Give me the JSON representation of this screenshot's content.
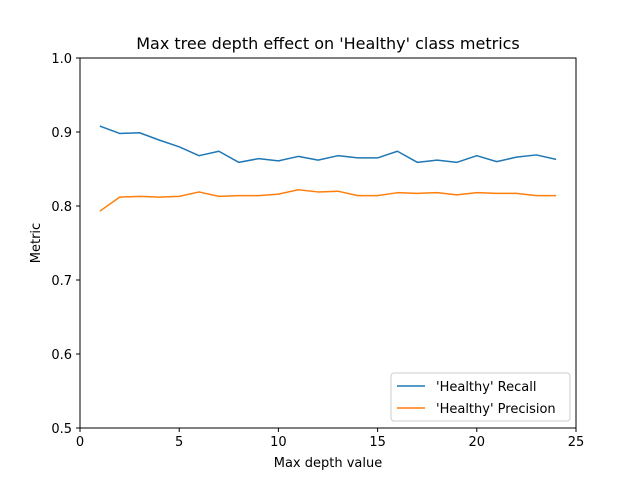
{
  "chart_data": {
    "type": "line",
    "title": "Max tree depth effect on 'Healthy' class metrics",
    "xlabel": "Max depth value",
    "ylabel": "Metric",
    "xlim": [
      0,
      25
    ],
    "ylim": [
      0.5,
      1.0
    ],
    "xticks": [
      0,
      5,
      10,
      15,
      20,
      25
    ],
    "yticks": [
      0.5,
      0.6,
      0.7,
      0.8,
      0.9,
      1.0
    ],
    "ytick_labels": [
      "0.5",
      "0.6",
      "0.7",
      "0.8",
      "0.9",
      "1.0"
    ],
    "grid": false,
    "legend_position": "lower-right",
    "x": [
      1,
      2,
      3,
      4,
      5,
      6,
      7,
      8,
      9,
      10,
      11,
      12,
      13,
      14,
      15,
      16,
      17,
      18,
      19,
      20,
      21,
      22,
      23,
      24
    ],
    "series": [
      {
        "name": "'Healthy' Recall",
        "color": "#1f77b4",
        "values": [
          0.908,
          0.898,
          0.899,
          0.889,
          0.88,
          0.868,
          0.874,
          0.859,
          0.864,
          0.861,
          0.867,
          0.862,
          0.868,
          0.865,
          0.865,
          0.874,
          0.859,
          0.862,
          0.859,
          0.868,
          0.86,
          0.866,
          0.869,
          0.863
        ]
      },
      {
        "name": "'Healthy' Precision",
        "color": "#ff7f0e",
        "values": [
          0.793,
          0.812,
          0.813,
          0.812,
          0.813,
          0.819,
          0.813,
          0.814,
          0.814,
          0.816,
          0.822,
          0.819,
          0.82,
          0.814,
          0.814,
          0.818,
          0.817,
          0.818,
          0.815,
          0.818,
          0.817,
          0.817,
          0.814,
          0.814
        ]
      }
    ]
  }
}
